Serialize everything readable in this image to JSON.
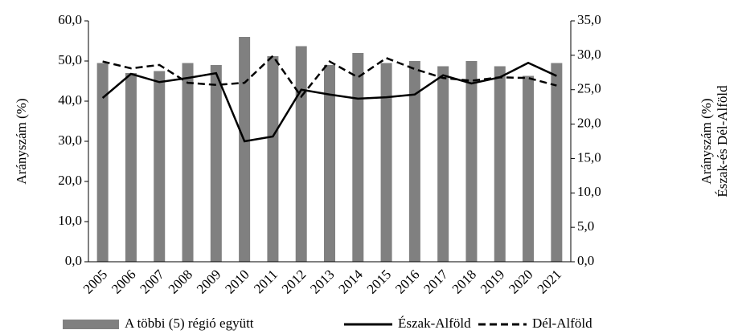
{
  "chart_data": {
    "type": "bar_line",
    "ylabel": "Arányszám (%)",
    "y2label": [
      "Arányszám (%)",
      "Észak-és Dél-Alföld"
    ],
    "categories": [
      "2005",
      "2006",
      "2007",
      "2008",
      "2009",
      "2010",
      "2011",
      "2012",
      "2013",
      "2014",
      "2015",
      "2016",
      "2017",
      "2018",
      "2019",
      "2020",
      "2021"
    ],
    "series": [
      {
        "name": "A többi (5) régió együtt",
        "type": "bar",
        "color": "#808080",
        "axis": "y",
        "values": [
          49.5,
          47.0,
          47.5,
          49.5,
          49.0,
          56.0,
          51.2,
          53.7,
          49.0,
          52.0,
          49.5,
          50.0,
          48.7,
          50.0,
          48.7,
          46.3,
          49.5
        ]
      },
      {
        "name": "Észak-Alföld",
        "type": "line",
        "color": "#000000",
        "dash": false,
        "axis": "y2",
        "values": [
          23.8,
          27.3,
          26.1,
          26.7,
          27.4,
          17.5,
          18.2,
          25.0,
          24.3,
          23.7,
          23.9,
          24.3,
          27.1,
          25.9,
          26.8,
          28.9,
          27.0
        ]
      },
      {
        "name": "Dél-Alföld",
        "type": "line",
        "color": "#000000",
        "dash": true,
        "axis": "y2",
        "values": [
          29.1,
          28.1,
          28.6,
          26.0,
          25.7,
          26.0,
          29.9,
          24.0,
          29.1,
          26.8,
          29.6,
          28.0,
          26.7,
          26.3,
          26.8,
          26.7,
          25.6
        ]
      }
    ],
    "ylim": [
      0,
      60
    ],
    "yticks": [
      {
        "value": 0,
        "label": "0,0"
      },
      {
        "value": 10,
        "label": "10,0"
      },
      {
        "value": 20,
        "label": "20,0"
      },
      {
        "value": 30,
        "label": "30,0"
      },
      {
        "value": 40,
        "label": "40,0"
      },
      {
        "value": 50,
        "label": "50,0"
      },
      {
        "value": 60,
        "label": "60,0"
      }
    ],
    "y2lim": [
      0,
      35
    ],
    "y2ticks": [
      {
        "value": 0,
        "label": "0,0"
      },
      {
        "value": 5,
        "label": "5,0"
      },
      {
        "value": 10,
        "label": "10,0"
      },
      {
        "value": 15,
        "label": "15,0"
      },
      {
        "value": 20,
        "label": "20,0"
      },
      {
        "value": 25,
        "label": "25,0"
      },
      {
        "value": 30,
        "label": "30,0"
      },
      {
        "value": 35,
        "label": "35,0"
      }
    ],
    "grid": false,
    "legend": "bottom"
  }
}
